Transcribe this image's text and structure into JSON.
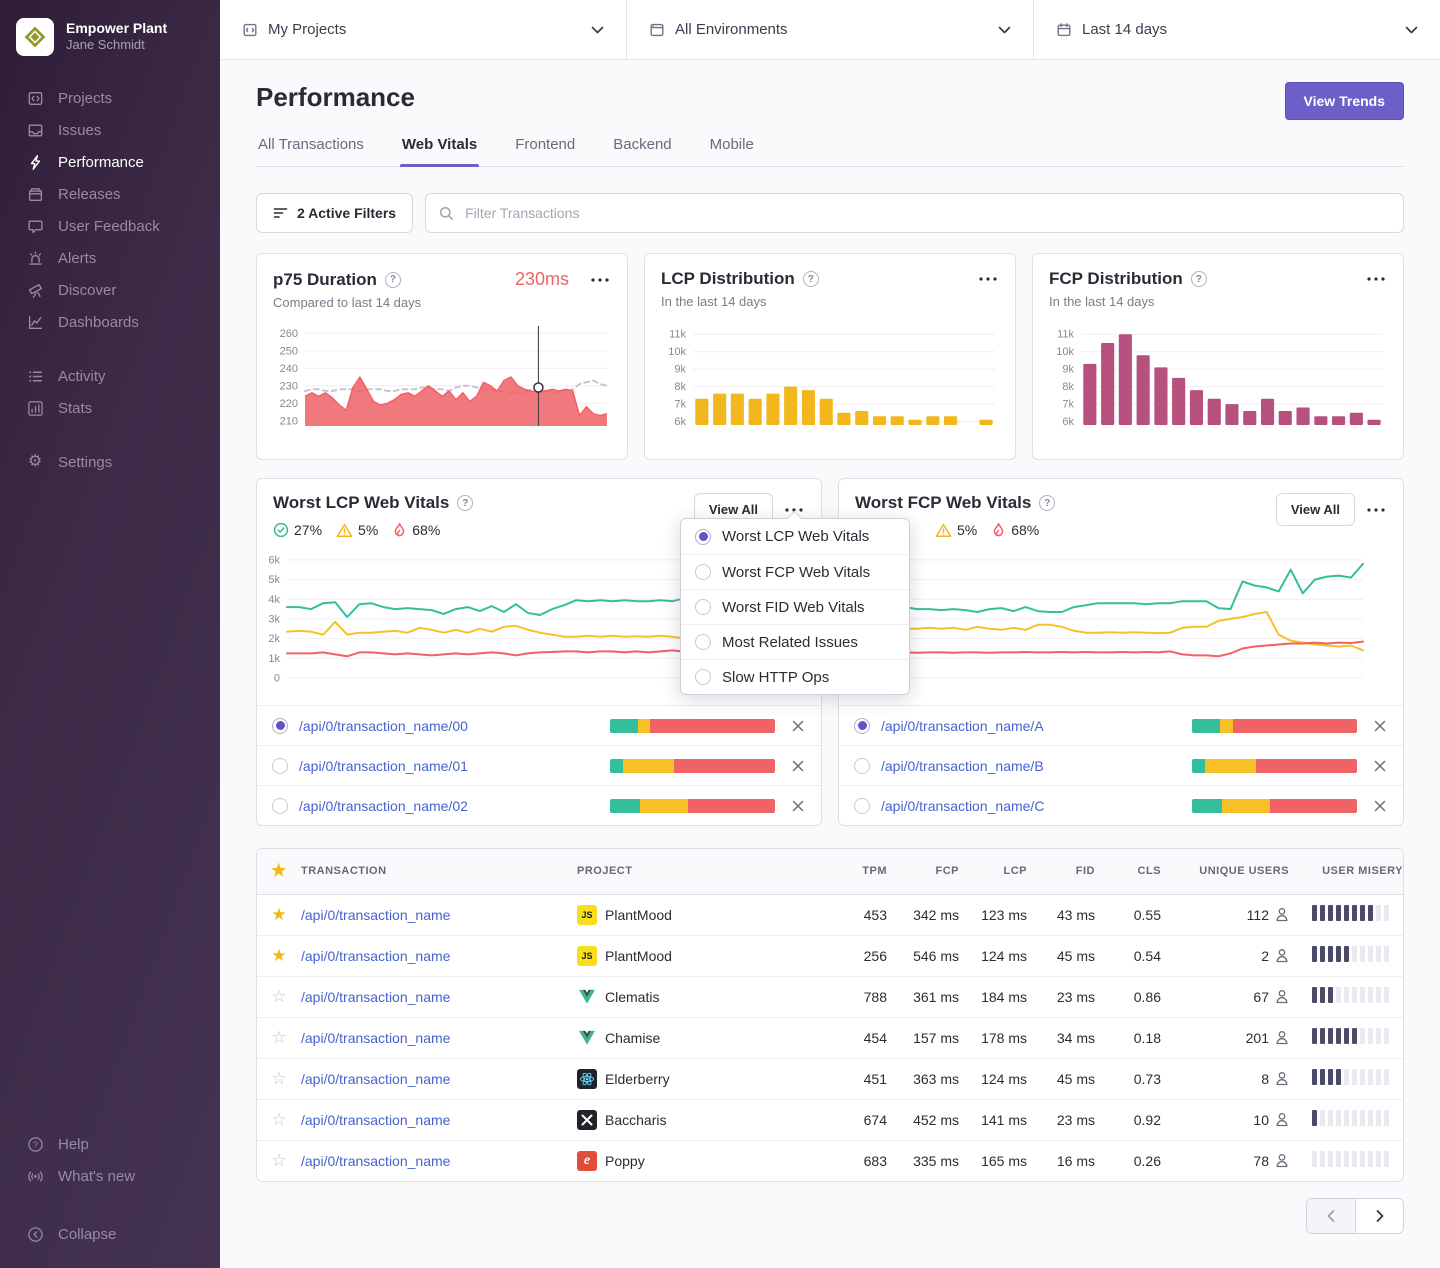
{
  "sidebar": {
    "org": "Empower Plant",
    "user": "Jane Schmidt",
    "primary": [
      {
        "label": "Projects",
        "active": false
      },
      {
        "label": "Issues",
        "active": false
      },
      {
        "label": "Performance",
        "active": true
      },
      {
        "label": "Releases",
        "active": false
      },
      {
        "label": "User Feedback",
        "active": false
      },
      {
        "label": "Alerts",
        "active": false
      },
      {
        "label": "Discover",
        "active": false
      },
      {
        "label": "Dashboards",
        "active": false
      }
    ],
    "secondary": [
      {
        "label": "Activity"
      },
      {
        "label": "Stats"
      }
    ],
    "tertiary": [
      {
        "label": "Settings"
      }
    ],
    "footer": [
      {
        "label": "Help"
      },
      {
        "label": "What's new"
      }
    ],
    "collapse": "Collapse"
  },
  "topbar": {
    "projects": "My Projects",
    "environments": "All Environments",
    "daterange": "Last 14 days"
  },
  "header": {
    "title": "Performance",
    "view_trends": "View Trends"
  },
  "tabs": [
    {
      "label": "All Transactions",
      "active": false
    },
    {
      "label": "Web Vitals",
      "active": true
    },
    {
      "label": "Frontend",
      "active": false
    },
    {
      "label": "Backend",
      "active": false
    },
    {
      "label": "Mobile",
      "active": false
    }
  ],
  "filter_bar": {
    "active_filters": "2 Active Filters",
    "placeholder": "Filter Transactions"
  },
  "p75_card": {
    "title": "p75 Duration",
    "value": "230ms",
    "subtitle": "Compared to last 14 days"
  },
  "lcp_card": {
    "title": "LCP Distribution",
    "subtitle": "In the last 14 days"
  },
  "fcp_card": {
    "title": "FCP Distribution",
    "subtitle": "In the last 14 days"
  },
  "vitals_left": {
    "title": "Worst LCP Web Vitals",
    "good": "27%",
    "meh": "5%",
    "poor": "68%",
    "view_all": "View All",
    "rows": [
      {
        "label": "/api/0/transaction_name/00",
        "selected": true,
        "bar": [
          17,
          7,
          76
        ]
      },
      {
        "label": "/api/0/transaction_name/01",
        "selected": false,
        "bar": [
          8,
          31,
          61
        ]
      },
      {
        "label": "/api/0/transaction_name/02",
        "selected": false,
        "bar": [
          18,
          29,
          53
        ]
      }
    ]
  },
  "vitals_right": {
    "title": "Worst FCP Web Vitals",
    "meh": "5%",
    "poor": "68%",
    "view_all": "View All",
    "rows": [
      {
        "label": "/api/0/transaction_name/A",
        "selected": true,
        "bar": [
          17,
          8,
          75
        ]
      },
      {
        "label": "/api/0/transaction_name/B",
        "selected": false,
        "bar": [
          8,
          31,
          61
        ]
      },
      {
        "label": "/api/0/transaction_name/C",
        "selected": false,
        "bar": [
          18,
          29,
          53
        ]
      }
    ]
  },
  "dropdown": {
    "items": [
      {
        "label": "Worst LCP Web Vitals",
        "selected": true
      },
      {
        "label": "Worst FCP Web Vitals",
        "selected": false
      },
      {
        "label": "Worst FID Web Vitals",
        "selected": false
      },
      {
        "label": "Most Related Issues",
        "selected": false
      },
      {
        "label": "Slow HTTP Ops",
        "selected": false
      }
    ]
  },
  "table": {
    "headers": {
      "transaction": "TRANSACTION",
      "project": "PROJECT",
      "tpm": "TPM",
      "fcp": "FCP",
      "lcp": "LCP",
      "fid": "FID",
      "cls": "CLS",
      "users": "UNIQUE USERS",
      "misery": "USER MISERY"
    },
    "rows": [
      {
        "starred": true,
        "transaction": "/api/0/transaction_name",
        "project": "PlantMood",
        "platform": "javascript",
        "tpm": "453",
        "fcp": "342 ms",
        "lcp": "123 ms",
        "fid": "43 ms",
        "cls": "0.55",
        "users": "112",
        "misery": 8
      },
      {
        "starred": true,
        "transaction": "/api/0/transaction_name",
        "project": "PlantMood",
        "platform": "javascript",
        "tpm": "256",
        "fcp": "546 ms",
        "lcp": "124 ms",
        "fid": "45 ms",
        "cls": "0.54",
        "users": "2",
        "misery": 5
      },
      {
        "starred": false,
        "transaction": "/api/0/transaction_name",
        "project": "Clematis",
        "platform": "vue",
        "tpm": "788",
        "fcp": "361 ms",
        "lcp": "184 ms",
        "fid": "23 ms",
        "cls": "0.86",
        "users": "67",
        "misery": 3
      },
      {
        "starred": false,
        "transaction": "/api/0/transaction_name",
        "project": "Chamise",
        "platform": "vue",
        "tpm": "454",
        "fcp": "157 ms",
        "lcp": "178 ms",
        "fid": "34 ms",
        "cls": "0.18",
        "users": "201",
        "misery": 6
      },
      {
        "starred": false,
        "transaction": "/api/0/transaction_name",
        "project": "Elderberry",
        "platform": "react",
        "tpm": "451",
        "fcp": "363 ms",
        "lcp": "124 ms",
        "fid": "45 ms",
        "cls": "0.73",
        "users": "8",
        "misery": 4
      },
      {
        "starred": false,
        "transaction": "/api/0/transaction_name",
        "project": "Baccharis",
        "platform": "default",
        "tpm": "674",
        "fcp": "452 ms",
        "lcp": "141 ms",
        "fid": "23 ms",
        "cls": "0.92",
        "users": "10",
        "misery": 1
      },
      {
        "starred": false,
        "transaction": "/api/0/transaction_name",
        "project": "Poppy",
        "platform": "ember",
        "tpm": "683",
        "fcp": "335 ms",
        "lcp": "165 ms",
        "fid": "16 ms",
        "cls": "0.26",
        "users": "78",
        "misery": 0
      }
    ]
  },
  "colors": {
    "accent": "#6c5fc7",
    "good": "#33bf9e",
    "meh": "#f6c026",
    "poor": "#ef6266",
    "lcp_bars": "#f1b71c",
    "fcp_bars": "#b5517c",
    "prev_line": "#c9c4cf"
  },
  "chart_data": [
    {
      "id": "p75",
      "type": "area",
      "title": "p75 Duration",
      "ylim": [
        207,
        263
      ],
      "yticks": [
        210,
        220,
        230,
        240,
        250,
        260
      ],
      "tick_k": false,
      "pad": [
        32,
        6,
        4,
        10
      ],
      "grid": true,
      "legend": "none",
      "marker": {
        "series": 0,
        "index": 34,
        "value": 229
      },
      "series": [
        {
          "name": "previous period",
          "style": "dashed",
          "color": "#c9c4cf",
          "values": [
            227,
            228,
            228,
            227,
            227,
            228,
            228,
            228,
            227,
            228,
            228,
            228,
            227,
            227,
            228,
            228,
            228,
            229,
            229,
            228,
            228,
            227,
            229,
            230,
            230,
            229,
            228,
            228,
            227,
            227,
            226,
            226,
            226,
            228,
            229,
            227,
            226,
            226,
            227,
            228,
            231,
            232,
            233,
            231,
            230
          ]
        },
        {
          "name": "p75 duration (ms)",
          "style": "area",
          "color": "#ef6266",
          "fill_opacity": 0.85,
          "values": [
            224,
            226,
            224,
            226,
            223,
            219,
            216,
            229,
            235,
            228,
            221,
            219,
            220,
            222,
            225,
            226,
            224,
            227,
            230,
            227,
            224,
            227,
            222,
            226,
            221,
            224,
            232,
            230,
            227,
            233,
            235,
            230,
            228,
            227,
            226,
            227,
            228,
            227,
            228,
            227,
            213,
            218,
            214,
            213,
            214
          ]
        }
      ]
    },
    {
      "id": "lcp_dist",
      "type": "bar",
      "title": "LCP Distribution",
      "color": "#f1b71c",
      "ylim": [
        5800,
        11300
      ],
      "yticks": [
        6000,
        7000,
        8000,
        9000,
        10000,
        11000
      ],
      "tick_k": true,
      "pad": [
        32,
        8,
        4,
        10
      ],
      "grid": true,
      "values": [
        7300,
        7600,
        7600,
        7300,
        7600,
        8000,
        7800,
        7300,
        6500,
        6600,
        6300,
        6300,
        6100,
        6300,
        6300,
        null,
        6100
      ]
    },
    {
      "id": "fcp_dist",
      "type": "bar",
      "title": "FCP Distribution",
      "color": "#b5517c",
      "ylim": [
        5800,
        11300
      ],
      "yticks": [
        6000,
        7000,
        8000,
        9000,
        10000,
        11000
      ],
      "tick_k": true,
      "pad": [
        32,
        8,
        4,
        10
      ],
      "grid": true,
      "values": [
        9300,
        10500,
        11000,
        9800,
        9100,
        8500,
        7800,
        7300,
        7000,
        6600,
        7300,
        6600,
        6800,
        6300,
        6300,
        6500,
        6100
      ]
    },
    {
      "id": "vitals_left",
      "type": "line",
      "title": "Worst LCP Web Vitals",
      "ylim": [
        0,
        6400
      ],
      "yticks": [
        0,
        1000,
        2000,
        3000,
        4000,
        5000,
        6000
      ],
      "tick_k": true,
      "pad": [
        30,
        8,
        8,
        18
      ],
      "grid": true,
      "series": [
        {
          "name": "good",
          "color": "#33bf9e",
          "values": [
            3600,
            3600,
            3500,
            3800,
            3850,
            3100,
            3750,
            3800,
            3600,
            3500,
            3550,
            3500,
            3450,
            3250,
            3500,
            3600,
            3400,
            3650,
            3350,
            3750,
            3300,
            3200,
            3500,
            3700,
            3950,
            3900,
            3950,
            3900,
            3950,
            3900,
            3900,
            3950,
            3900,
            4050,
            4100,
            4100,
            3500,
            3450,
            3400,
            5200,
            5000,
            4650
          ]
        },
        {
          "name": "meh",
          "color": "#f6c026",
          "values": [
            2350,
            2400,
            2350,
            2200,
            2850,
            2200,
            2300,
            2300,
            2350,
            2400,
            2300,
            2550,
            2450,
            2300,
            2450,
            2300,
            2500,
            2350,
            2600,
            2650,
            2450,
            2300,
            2200,
            2100,
            2100,
            2150,
            2100,
            2150,
            2100,
            2120,
            2100,
            2150,
            2100,
            2000,
            1950,
            2000,
            2500,
            2600,
            3000,
            3100,
            3300,
            3500
          ]
        },
        {
          "name": "poor",
          "color": "#ef6266",
          "values": [
            1250,
            1250,
            1250,
            1300,
            1200,
            1100,
            1300,
            1300,
            1250,
            1200,
            1250,
            1200,
            1150,
            1200,
            1250,
            1200,
            1250,
            1300,
            1250,
            1150,
            1250,
            1300,
            1320,
            1350,
            1350,
            1300,
            1350,
            1350,
            1300,
            1350,
            1300,
            1350,
            1400,
            1330,
            1250,
            1200,
            1150,
            1100,
            1050,
            1000,
            970,
            950
          ]
        }
      ]
    },
    {
      "id": "vitals_right",
      "type": "line",
      "title": "Worst FCP Web Vitals",
      "ylim": [
        0,
        6400
      ],
      "yticks": [
        0,
        1000,
        2000,
        3000,
        4000,
        5000,
        6000
      ],
      "tick_k": true,
      "pad": [
        30,
        8,
        8,
        18
      ],
      "grid": true,
      "series": [
        {
          "name": "good",
          "color": "#33bf9e",
          "values": [
            3550,
            3200,
            3600,
            3600,
            3500,
            3500,
            3450,
            3500,
            3450,
            3350,
            3500,
            3550,
            3400,
            3600,
            3400,
            3350,
            3350,
            3600,
            3700,
            3800,
            3800,
            3800,
            3800,
            3750,
            3800,
            3800,
            3900,
            3900,
            3900,
            3550,
            3500,
            4900,
            4700,
            4600,
            4400,
            5500,
            4300,
            5000,
            5150,
            5200,
            5100,
            5800
          ]
        },
        {
          "name": "meh",
          "color": "#f6c026",
          "values": [
            2400,
            2650,
            2450,
            2500,
            2500,
            2550,
            2500,
            2550,
            2450,
            2600,
            2500,
            2450,
            2550,
            2450,
            2700,
            2700,
            2600,
            2400,
            2300,
            2300,
            2320,
            2300,
            2320,
            2300,
            2280,
            2300,
            2550,
            2600,
            2600,
            2900,
            3000,
            3100,
            3250,
            3350,
            2200,
            1900,
            1800,
            1700,
            1650,
            1600,
            1650,
            1400
          ]
        },
        {
          "name": "poor",
          "color": "#ef6266",
          "values": [
            1300,
            1250,
            1300,
            1300,
            1280,
            1300,
            1300,
            1280,
            1300,
            1300,
            1280,
            1300,
            1300,
            1320,
            1300,
            1300,
            1320,
            1300,
            1320,
            1300,
            1300,
            1320,
            1300,
            1320,
            1300,
            1350,
            1200,
            1150,
            1150,
            1100,
            1250,
            1500,
            1600,
            1650,
            1700,
            1750,
            1750,
            1800,
            1750,
            1800,
            1780,
            1850
          ]
        }
      ]
    }
  ]
}
